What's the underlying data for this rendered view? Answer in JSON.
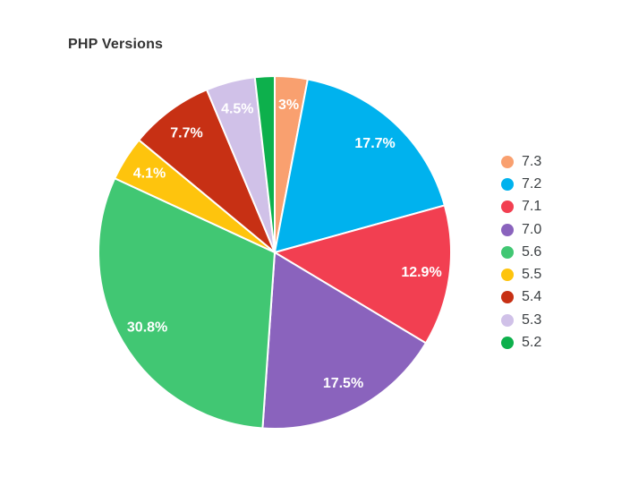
{
  "chart_data": {
    "type": "pie",
    "title": "PHP Versions",
    "legend_position": "right",
    "direction": "clockwise",
    "start_angle_deg": 0,
    "slice_border_color": "#ffffff",
    "label_color": "#ffffff",
    "slices": [
      {
        "label": "7.3",
        "value": 3.0,
        "display": "3%",
        "color": "#F9A06F"
      },
      {
        "label": "7.2",
        "value": 17.7,
        "display": "17.7%",
        "color": "#00B2EE"
      },
      {
        "label": "7.1",
        "value": 12.9,
        "display": "12.9%",
        "color": "#F23F51"
      },
      {
        "label": "7.0",
        "value": 17.5,
        "display": "17.5%",
        "color": "#8A63BD"
      },
      {
        "label": "5.6",
        "value": 30.8,
        "display": "30.8%",
        "color": "#41C773"
      },
      {
        "label": "5.5",
        "value": 4.1,
        "display": "4.1%",
        "color": "#FEC40D"
      },
      {
        "label": "5.4",
        "value": 7.7,
        "display": "7.7%",
        "color": "#C73014"
      },
      {
        "label": "5.3",
        "value": 4.5,
        "display": "4.5%",
        "color": "#D0C1E8"
      },
      {
        "label": "5.2",
        "value": 1.8,
        "display": "",
        "color": "#0DB04C"
      }
    ]
  }
}
